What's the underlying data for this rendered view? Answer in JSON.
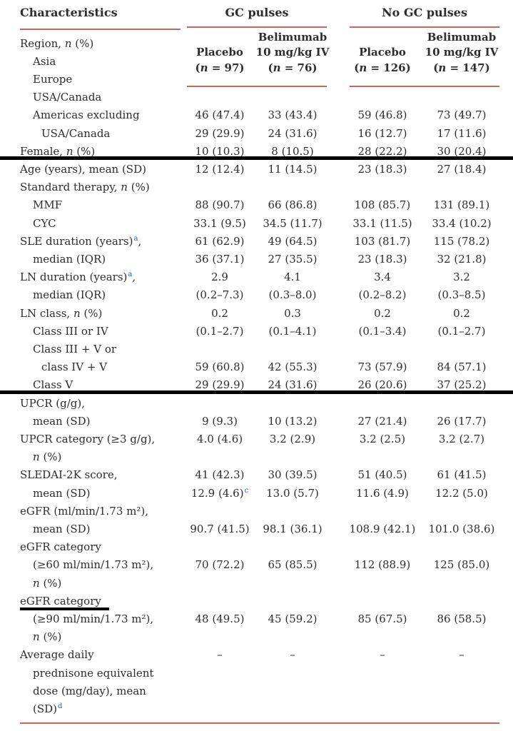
{
  "colors": {
    "text": "#2d2d2d",
    "rule-red": "#c5685c",
    "sup-blue": "#2b5fb0",
    "annotation-black": "#000000"
  },
  "header": {
    "characteristics": "Characteristics",
    "groups": [
      {
        "label": "GC pulses"
      },
      {
        "label": "No GC pulses"
      }
    ]
  },
  "columns": [
    {
      "lines": [
        "Placebo",
        "(n = 97)"
      ]
    },
    {
      "lines": [
        "Belimumab",
        "10 mg/kg IV",
        "(n = 76)"
      ]
    },
    {
      "lines": [
        "Placebo",
        "(n = 126)"
      ]
    },
    {
      "lines": [
        "Belimumab",
        "10 mg/kg IV",
        "(n = 147)"
      ]
    }
  ],
  "rows": [
    {
      "label": "Region, n (%)",
      "indent": 0
    },
    {
      "label": "Asia",
      "indent": 1
    },
    {
      "label": "Europe",
      "indent": 1
    },
    {
      "label": "USA/Canada",
      "indent": 1
    },
    {
      "label": "Americas excluding",
      "indent": 1,
      "values": [
        "46 (47.4)",
        "33 (43.4)",
        "59 (46.8)",
        "73 (49.7)"
      ]
    },
    {
      "label": "USA/Canada",
      "indent": 2,
      "values": [
        "29 (29.9)",
        "24 (31.6)",
        "16 (12.7)",
        "17 (11.6)"
      ]
    },
    {
      "label": "Female, n (%)",
      "indent": 0,
      "values": [
        "10 (10.3)",
        "8 (10.5)",
        "28 (22.2)",
        "30 (20.4)"
      ]
    },
    {
      "label": "Age (years), mean (SD)",
      "indent": 0,
      "values": [
        "12 (12.4)",
        "11 (14.5)",
        "23 (18.3)",
        "27 (18.4)"
      ]
    },
    {
      "label": "Standard therapy, n (%)",
      "indent": 0
    },
    {
      "label": "MMF",
      "indent": 1,
      "values": [
        "88 (90.7)",
        "66 (86.8)",
        "108 (85.7)",
        "131 (89.1)"
      ]
    },
    {
      "label": "CYC",
      "indent": 1,
      "values": [
        "33.1 (9.5)",
        "34.5 (11.7)",
        "33.1 (11.5)",
        "33.4 (10.2)"
      ]
    },
    {
      "label": "SLE duration (years)",
      "sup": "a",
      "tail": ",",
      "indent": 0,
      "values": [
        "61 (62.9)",
        "49 (64.5)",
        "103 (81.7)",
        "115 (78.2)"
      ]
    },
    {
      "label": "median (IQR)",
      "indent": 1,
      "values": [
        "36 (37.1)",
        "27 (35.5)",
        "23 (18.3)",
        "32 (21.8)"
      ]
    },
    {
      "label": "LN duration (years)",
      "sup": "a",
      "tail": ",",
      "indent": 0,
      "values": [
        "2.9",
        "4.1",
        "3.4",
        "3.2"
      ]
    },
    {
      "label": "median (IQR)",
      "indent": 1,
      "values": [
        "(0.2–7.3)",
        "(0.3–8.0)",
        "(0.2–8.2)",
        "(0.3–8.5)"
      ]
    },
    {
      "label": "LN class, n (%)",
      "indent": 0,
      "values": [
        "0.2",
        "0.3",
        "0.2",
        "0.2"
      ]
    },
    {
      "label": "Class III or IV",
      "indent": 1,
      "values": [
        "(0.1–2.7)",
        "(0.1–4.1)",
        "(0.1–3.4)",
        "(0.1–2.7)"
      ]
    },
    {
      "label": "Class III + V or",
      "indent": 1
    },
    {
      "label": "class IV + V",
      "indent": 2,
      "values": [
        "59 (60.8)",
        "42 (55.3)",
        "73 (57.9)",
        "84 (57.1)"
      ]
    },
    {
      "label": "Class V",
      "indent": 1,
      "values": [
        "29 (29.9)",
        "24 (31.6)",
        "26 (20.6)",
        "37 (25.2)"
      ]
    },
    {
      "label": "UPCR (g/g),",
      "indent": 0
    },
    {
      "label": "mean (SD)",
      "indent": 1,
      "values": [
        "9 (9.3)",
        "10 (13.2)",
        "27 (21.4)",
        "26 (17.7)"
      ]
    },
    {
      "label": "UPCR category (≥3 g/g),",
      "indent": 0,
      "values": [
        "4.0 (4.6)",
        "3.2 (2.9)",
        "3.2 (2.5)",
        "3.2 (2.7)"
      ]
    },
    {
      "label": "n (%)",
      "indent": 1
    },
    {
      "label": "SLEDAI-2K score,",
      "indent": 0,
      "values": [
        "41 (42.3)",
        "30 (39.5)",
        "51 (40.5)",
        "61 (41.5)"
      ]
    },
    {
      "label": "mean (SD)",
      "indent": 1,
      "values": [
        {
          "text": "12.9 (4.6)",
          "sup": "c"
        },
        "13.0 (5.7)",
        "11.6 (4.9)",
        "12.2 (5.0)"
      ]
    },
    {
      "label": "eGFR (ml/min/1.73 m²),",
      "indent": 0
    },
    {
      "label": "mean (SD)",
      "indent": 1,
      "values": [
        "90.7 (41.5)",
        "98.1 (36.1)",
        "108.9 (42.1)",
        "101.0 (38.6)"
      ]
    },
    {
      "label": "eGFR category",
      "indent": 0
    },
    {
      "label": "(≥60 ml/min/1.73 m²),",
      "indent": 1,
      "values": [
        "70 (72.2)",
        "65 (85.5)",
        "112 (88.9)",
        "125 (85.0)"
      ]
    },
    {
      "label": "n (%)",
      "indent": 1
    },
    {
      "label": "eGFR category",
      "indent": 0
    },
    {
      "label": "(≥90 ml/min/1.73 m²),",
      "indent": 1,
      "values": [
        "48 (49.5)",
        "45 (59.2)",
        "85 (67.5)",
        "86 (58.5)"
      ]
    },
    {
      "label": "n (%)",
      "indent": 1
    },
    {
      "label": "Average daily",
      "indent": 0,
      "values": [
        "–",
        "–",
        "–",
        "–"
      ]
    },
    {
      "label": "prednisone equivalent",
      "indent": 1
    },
    {
      "label": "dose (mg/day), mean",
      "indent": 1
    },
    {
      "label": "(SD)",
      "sup": "d",
      "indent": 1
    }
  ]
}
